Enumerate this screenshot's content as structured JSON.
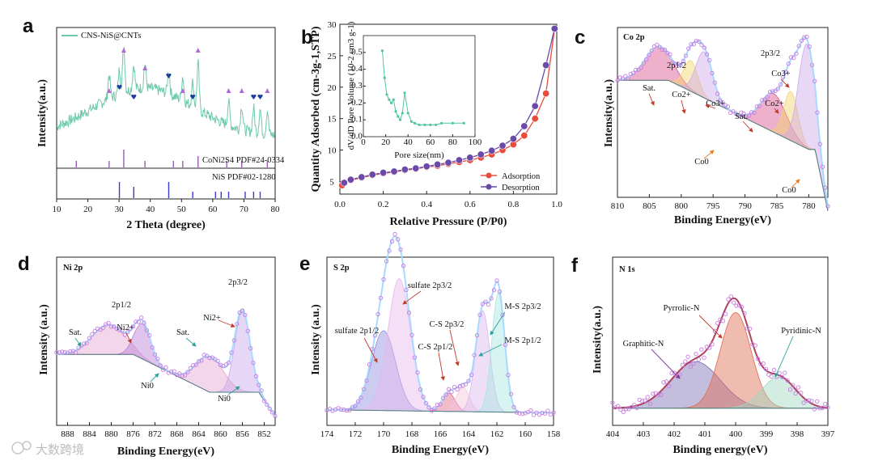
{
  "watermark": "大数跨境",
  "colors": {
    "xrd_pattern": "#6fc9a9",
    "adsorption": "#e74c3c",
    "desorption": "#6a4aa8",
    "points_outline": "#c77de0",
    "envelope": "#a8d9ff",
    "background_line": "#4d7f7f"
  },
  "chart_data": [
    {
      "panel": "a",
      "type": "line",
      "legend": [
        "CNS-NiS@CNTs"
      ],
      "xlabel": "2 Theta (degree)",
      "ylabel": "Intensity(a.u.)",
      "xlim": [
        10,
        80
      ],
      "xticks": [
        10,
        20,
        30,
        40,
        50,
        60,
        70,
        80
      ],
      "reference_labels": [
        "CoNi2S4 PDF#24-0334",
        "NiS PDF#02-1280"
      ],
      "peaks_triangle": [
        26.8,
        31.5,
        38.3,
        50.4,
        55.3,
        65.1,
        69.3,
        77.5
      ],
      "peaks_heart": [
        30.1,
        34.7,
        45.9,
        53.6,
        73.1,
        75.2
      ],
      "ref_CoNi2S4": [
        16.3,
        26.8,
        31.5,
        38.3,
        47.4,
        50.4,
        55.3,
        64.5,
        69.3,
        77.5
      ],
      "ref_NiS": [
        30.1,
        34.7,
        45.9,
        53.6,
        60.9,
        62.7,
        65.1,
        70.4,
        73.1,
        75.2
      ]
    },
    {
      "panel": "b",
      "type": "line",
      "xlabel": "Relative Pressure (P/P0)",
      "ylabel": "Quantity Adsorbed (cm-3g-1,STP)",
      "xlim": [
        0,
        1
      ],
      "ylim": [
        3,
        30
      ],
      "xticks": [
        0.0,
        0.2,
        0.4,
        0.6,
        0.8,
        1.0
      ],
      "yticks": [
        5,
        10,
        15,
        20,
        25,
        30
      ],
      "series": [
        {
          "name": "Adsorption",
          "x": [
            0.01,
            0.05,
            0.1,
            0.15,
            0.2,
            0.25,
            0.3,
            0.35,
            0.4,
            0.45,
            0.5,
            0.55,
            0.6,
            0.65,
            0.7,
            0.75,
            0.8,
            0.85,
            0.9,
            0.95,
            0.99
          ],
          "y": [
            4.4,
            5.2,
            5.6,
            6.0,
            6.3,
            6.5,
            6.8,
            7.0,
            7.3,
            7.5,
            7.8,
            8.1,
            8.4,
            8.8,
            9.3,
            10.0,
            10.9,
            12.3,
            15.0,
            19.0,
            29.3
          ]
        },
        {
          "name": "Desorption",
          "x": [
            0.99,
            0.95,
            0.9,
            0.85,
            0.8,
            0.75,
            0.7,
            0.65,
            0.6,
            0.55,
            0.5,
            0.45,
            0.4,
            0.35,
            0.3,
            0.25,
            0.2,
            0.15,
            0.1,
            0.05,
            0.02
          ],
          "y": [
            29.3,
            23.5,
            17.0,
            13.8,
            11.8,
            10.7,
            9.9,
            9.3,
            8.8,
            8.4,
            8.0,
            7.7,
            7.4,
            7.1,
            6.9,
            6.6,
            6.4,
            6.1,
            5.7,
            5.3,
            4.8
          ]
        }
      ],
      "inset": {
        "xlabel": "Pore size(nm)",
        "ylabel": "dV/dD Pore Volume (10-2 cm3 g-1)",
        "xlim": [
          0,
          100
        ],
        "ylim": [
          0,
          0.6
        ],
        "xticks": [
          0,
          20,
          40,
          60,
          80,
          100
        ],
        "yticks": [
          0.0,
          0.1,
          0.2,
          0.3,
          0.4,
          0.5
        ],
        "x": [
          17,
          19,
          21,
          23,
          25,
          27,
          29,
          31,
          33,
          35,
          37,
          40,
          43,
          46,
          50,
          55,
          60,
          65,
          70,
          80,
          90
        ],
        "y": [
          0.51,
          0.35,
          0.25,
          0.22,
          0.2,
          0.22,
          0.15,
          0.12,
          0.1,
          0.14,
          0.26,
          0.14,
          0.09,
          0.08,
          0.07,
          0.07,
          0.07,
          0.07,
          0.08,
          0.08,
          0.08
        ]
      }
    },
    {
      "panel": "c",
      "type": "line",
      "title": "Co 2p",
      "xlabel": "Binding Energy(eV)",
      "ylabel": "Intensity(a.u.)",
      "xlim": [
        810,
        777
      ],
      "xticks": [
        810,
        805,
        800,
        795,
        790,
        785,
        780
      ],
      "annotations": [
        "2p1/2",
        "2p3/2",
        "Sat.",
        "Co2+",
        "Co3+",
        "Sat.",
        "Co2+",
        "Co3+",
        "Co0",
        "Co0"
      ]
    },
    {
      "panel": "d",
      "type": "line",
      "title": "Ni 2p",
      "xlabel": "Binding Energy(eV)",
      "ylabel": "Intensity (a.u.)",
      "xlim": [
        890,
        850
      ],
      "xticks": [
        888,
        884,
        880,
        876,
        872,
        868,
        864,
        860,
        856,
        852
      ],
      "annotations": [
        "2p1/2",
        "2p3/2",
        "Sat.",
        "Ni2+",
        "Sat.",
        "Ni2+",
        "Ni0",
        "Ni0"
      ]
    },
    {
      "panel": "e",
      "type": "line",
      "title": "S 2p",
      "xlabel": "Binding Energy(eV)",
      "ylabel": "Intensity (a.u.)",
      "xlim": [
        174,
        158
      ],
      "xticks": [
        174,
        172,
        170,
        168,
        166,
        164,
        162,
        160,
        158
      ],
      "annotations": [
        "sulfate 2p3/2",
        "sulfate 2p1/2",
        "C-S 2p3/2",
        "C-S 2p1/2",
        "M-S 2p3/2",
        "M-S 2p1/2"
      ]
    },
    {
      "panel": "f",
      "type": "line",
      "title": "N 1s",
      "xlabel": "Binding energy(eV)",
      "ylabel": "Intensity(a.u.)",
      "xlim": [
        404,
        397
      ],
      "xticks": [
        404,
        403,
        402,
        401,
        400,
        399,
        398,
        397
      ],
      "annotations": [
        "Pyrrolic-N",
        "Graphitic-N",
        "Pyridinic-N"
      ]
    }
  ]
}
